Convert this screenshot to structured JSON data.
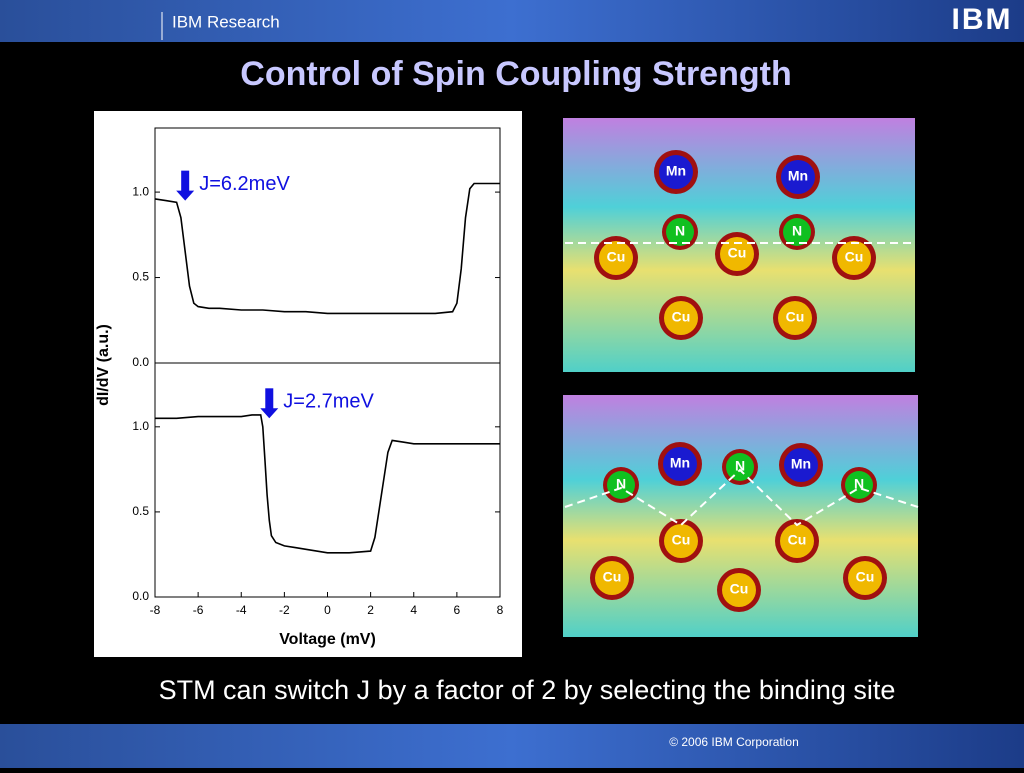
{
  "header": {
    "section": "IBM Research",
    "logo": "IBM",
    "title": "Control of Spin Coupling Strength"
  },
  "caption": "STM can switch J by a factor of 2 by selecting the binding site",
  "footer": "© 2006 IBM Corporation",
  "chart_data": [
    {
      "type": "line",
      "ylabel": "dI/dV (a.u.)",
      "annotation": "J=6.2meV",
      "color": "#000000",
      "x": [
        -8,
        -7.5,
        -7,
        -6.8,
        -6.6,
        -6.4,
        -6.2,
        -6,
        -5.5,
        -5,
        -4,
        -3,
        -2,
        -1,
        0,
        1,
        2,
        3,
        4,
        5,
        5.8,
        6,
        6.2,
        6.4,
        6.6,
        6.8,
        7,
        7.5,
        8
      ],
      "values": [
        0.96,
        0.95,
        0.94,
        0.85,
        0.65,
        0.45,
        0.35,
        0.33,
        0.32,
        0.32,
        0.31,
        0.31,
        0.3,
        0.3,
        0.29,
        0.29,
        0.29,
        0.29,
        0.29,
        0.29,
        0.3,
        0.35,
        0.55,
        0.85,
        1.02,
        1.05,
        1.05,
        1.05,
        1.05
      ],
      "ylim": [
        0,
        1.375
      ],
      "yticks": [
        {
          "value": 0,
          "label": "0.0"
        },
        {
          "value": 0.5,
          "label": "0.5"
        },
        {
          "value": 1,
          "label": "1.0"
        }
      ]
    },
    {
      "type": "line",
      "xlabel": "Voltage (mV)",
      "annotation": "J=2.7meV",
      "color": "#000000",
      "x": [
        -8,
        -7,
        -6,
        -5,
        -4,
        -3.5,
        -3.1,
        -3,
        -2.9,
        -2.8,
        -2.7,
        -2.6,
        -2.4,
        -2,
        -1.5,
        -1,
        0,
        1,
        2,
        2.2,
        2.5,
        2.8,
        3,
        3.5,
        4,
        5,
        6,
        7,
        8
      ],
      "values": [
        1.05,
        1.05,
        1.06,
        1.06,
        1.06,
        1.07,
        1.07,
        1.0,
        0.8,
        0.6,
        0.45,
        0.36,
        0.32,
        0.3,
        0.29,
        0.28,
        0.26,
        0.26,
        0.27,
        0.35,
        0.6,
        0.85,
        0.92,
        0.91,
        0.9,
        0.9,
        0.9,
        0.9,
        0.9
      ],
      "ylim": [
        0,
        1.375
      ],
      "xlim": [
        -8,
        8
      ],
      "xticks": [
        -8,
        -6,
        -4,
        -2,
        0,
        2,
        4,
        6,
        8
      ],
      "yticks": [
        {
          "value": 0,
          "label": "0.0"
        },
        {
          "value": 0.5,
          "label": "0.5"
        },
        {
          "value": 1,
          "label": "1.0"
        }
      ]
    }
  ],
  "images": [
    {
      "atoms": [
        "Mn",
        "Mn",
        "N",
        "N",
        "Cu",
        "Cu",
        "Cu",
        "Cu",
        "Cu"
      ]
    },
    {
      "atoms": [
        "Mn",
        "N",
        "Mn",
        "N",
        "N",
        "Cu",
        "Cu",
        "Cu",
        "Cu",
        "Cu"
      ]
    }
  ]
}
